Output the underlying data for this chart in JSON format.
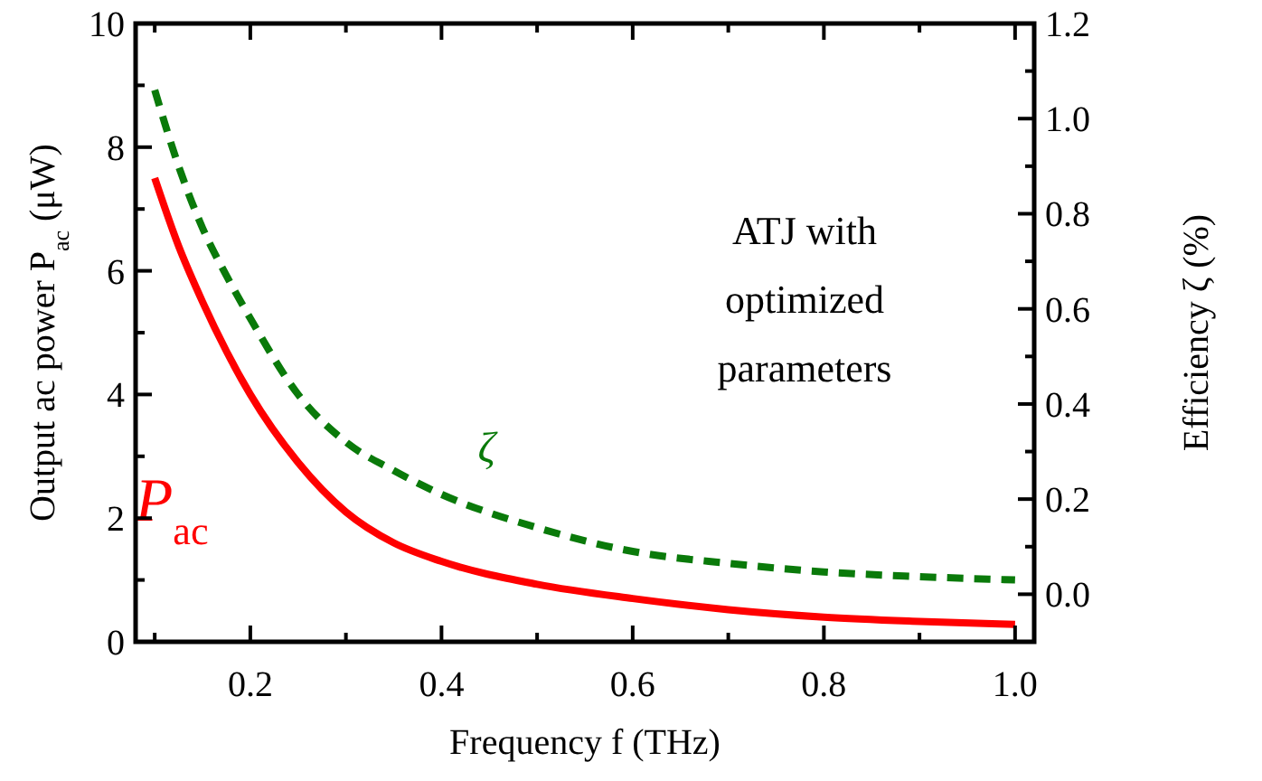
{
  "chart_data": {
    "type": "line",
    "xlabel": "Frequency f (THz)",
    "ylabel": "Output ac power P$_{ac}$ (μW)",
    "y2label": "Efficiency ζ (%)",
    "x": [
      0.1,
      0.125,
      0.15,
      0.175,
      0.2,
      0.25,
      0.3,
      0.35,
      0.4,
      0.5,
      0.6,
      0.7,
      0.8,
      0.9,
      1.0
    ],
    "series": [
      {
        "name": "P$_{ac}$",
        "color": "#ff0000",
        "line_style": "solid",
        "values": [
          7.5,
          6.4,
          5.5,
          4.7,
          4.0,
          2.9,
          2.1,
          1.6,
          1.3,
          0.93,
          0.7,
          0.52,
          0.4,
          0.33,
          0.28
        ]
      },
      {
        "name": "ζ",
        "color": "#0a7a0a",
        "axis": "y2",
        "line_style": "dashed",
        "values": [
          1.06,
          0.9,
          0.77,
          0.67,
          0.58,
          0.42,
          0.32,
          0.26,
          0.21,
          0.14,
          0.09,
          0.065,
          0.047,
          0.037,
          0.03
        ]
      }
    ],
    "xlim": [
      0.08,
      1.02
    ],
    "xticks": [
      {
        "value": 0.1,
        "label": null
      },
      0.2,
      {
        "value": 0.3,
        "label": null
      },
      0.4,
      {
        "value": 0.5,
        "label": null
      },
      0.6,
      {
        "value": 0.7,
        "label": null
      },
      0.8,
      {
        "value": 0.9,
        "label": null
      },
      {
        "value": 1.0,
        "label": "1.0"
      }
    ],
    "ylim": [
      0,
      10
    ],
    "yticks": [
      0,
      {
        "value": 1,
        "label": null
      },
      2,
      {
        "value": 3,
        "label": null
      },
      4,
      {
        "value": 5,
        "label": null
      },
      6,
      {
        "value": 7,
        "label": null
      },
      8,
      {
        "value": 9,
        "label": null
      },
      10
    ],
    "y2lim": [
      -0.1,
      1.2
    ],
    "y2ticks": [
      {
        "value": -0.1,
        "label": null
      },
      {
        "value": 0,
        "label": "0.0"
      },
      {
        "value": 0.1,
        "label": null
      },
      0.2,
      {
        "value": 0.3,
        "label": null
      },
      0.4,
      {
        "value": 0.5,
        "label": null
      },
      0.6,
      {
        "value": 0.7,
        "label": null
      },
      0.8,
      {
        "value": 0.9,
        "label": null
      },
      {
        "value": 1.0,
        "label": "1.0"
      },
      {
        "value": 1.1,
        "label": null
      },
      1.2
    ],
    "annotations": [
      "ATJ with optimized parameters"
    ],
    "grid": false
  }
}
